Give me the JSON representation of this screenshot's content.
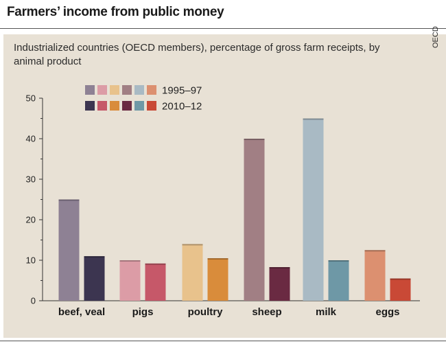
{
  "header": {
    "title": "Farmers’ income from public money"
  },
  "source": "OECD",
  "chart_data": {
    "type": "bar",
    "title": "Farmers’ income from public money",
    "subtitle": "Industrialized countries (OECD members), percentage of gross farm receipts, by animal product",
    "xlabel": "",
    "ylabel": "",
    "ylim": [
      0,
      50
    ],
    "yticks": [
      0,
      10,
      20,
      30,
      40,
      50
    ],
    "grid": false,
    "legend_position": "top-left",
    "categories": [
      "beef, veal",
      "pigs",
      "poultry",
      "sheep",
      "milk",
      "eggs"
    ],
    "series": [
      {
        "name": "1995–97",
        "values": [
          25,
          10,
          14,
          40,
          45,
          12.5
        ],
        "colors": [
          "#8e8194",
          "#dc9ca6",
          "#e8c28c",
          "#a17f84",
          "#a9bac4",
          "#dc9070"
        ]
      },
      {
        "name": "2010–12",
        "values": [
          11,
          9.2,
          10.5,
          8.3,
          10,
          5.5
        ],
        "colors": [
          "#3c3550",
          "#c65869",
          "#d98c3b",
          "#6a2a42",
          "#6e98a6",
          "#c94936"
        ]
      }
    ]
  }
}
